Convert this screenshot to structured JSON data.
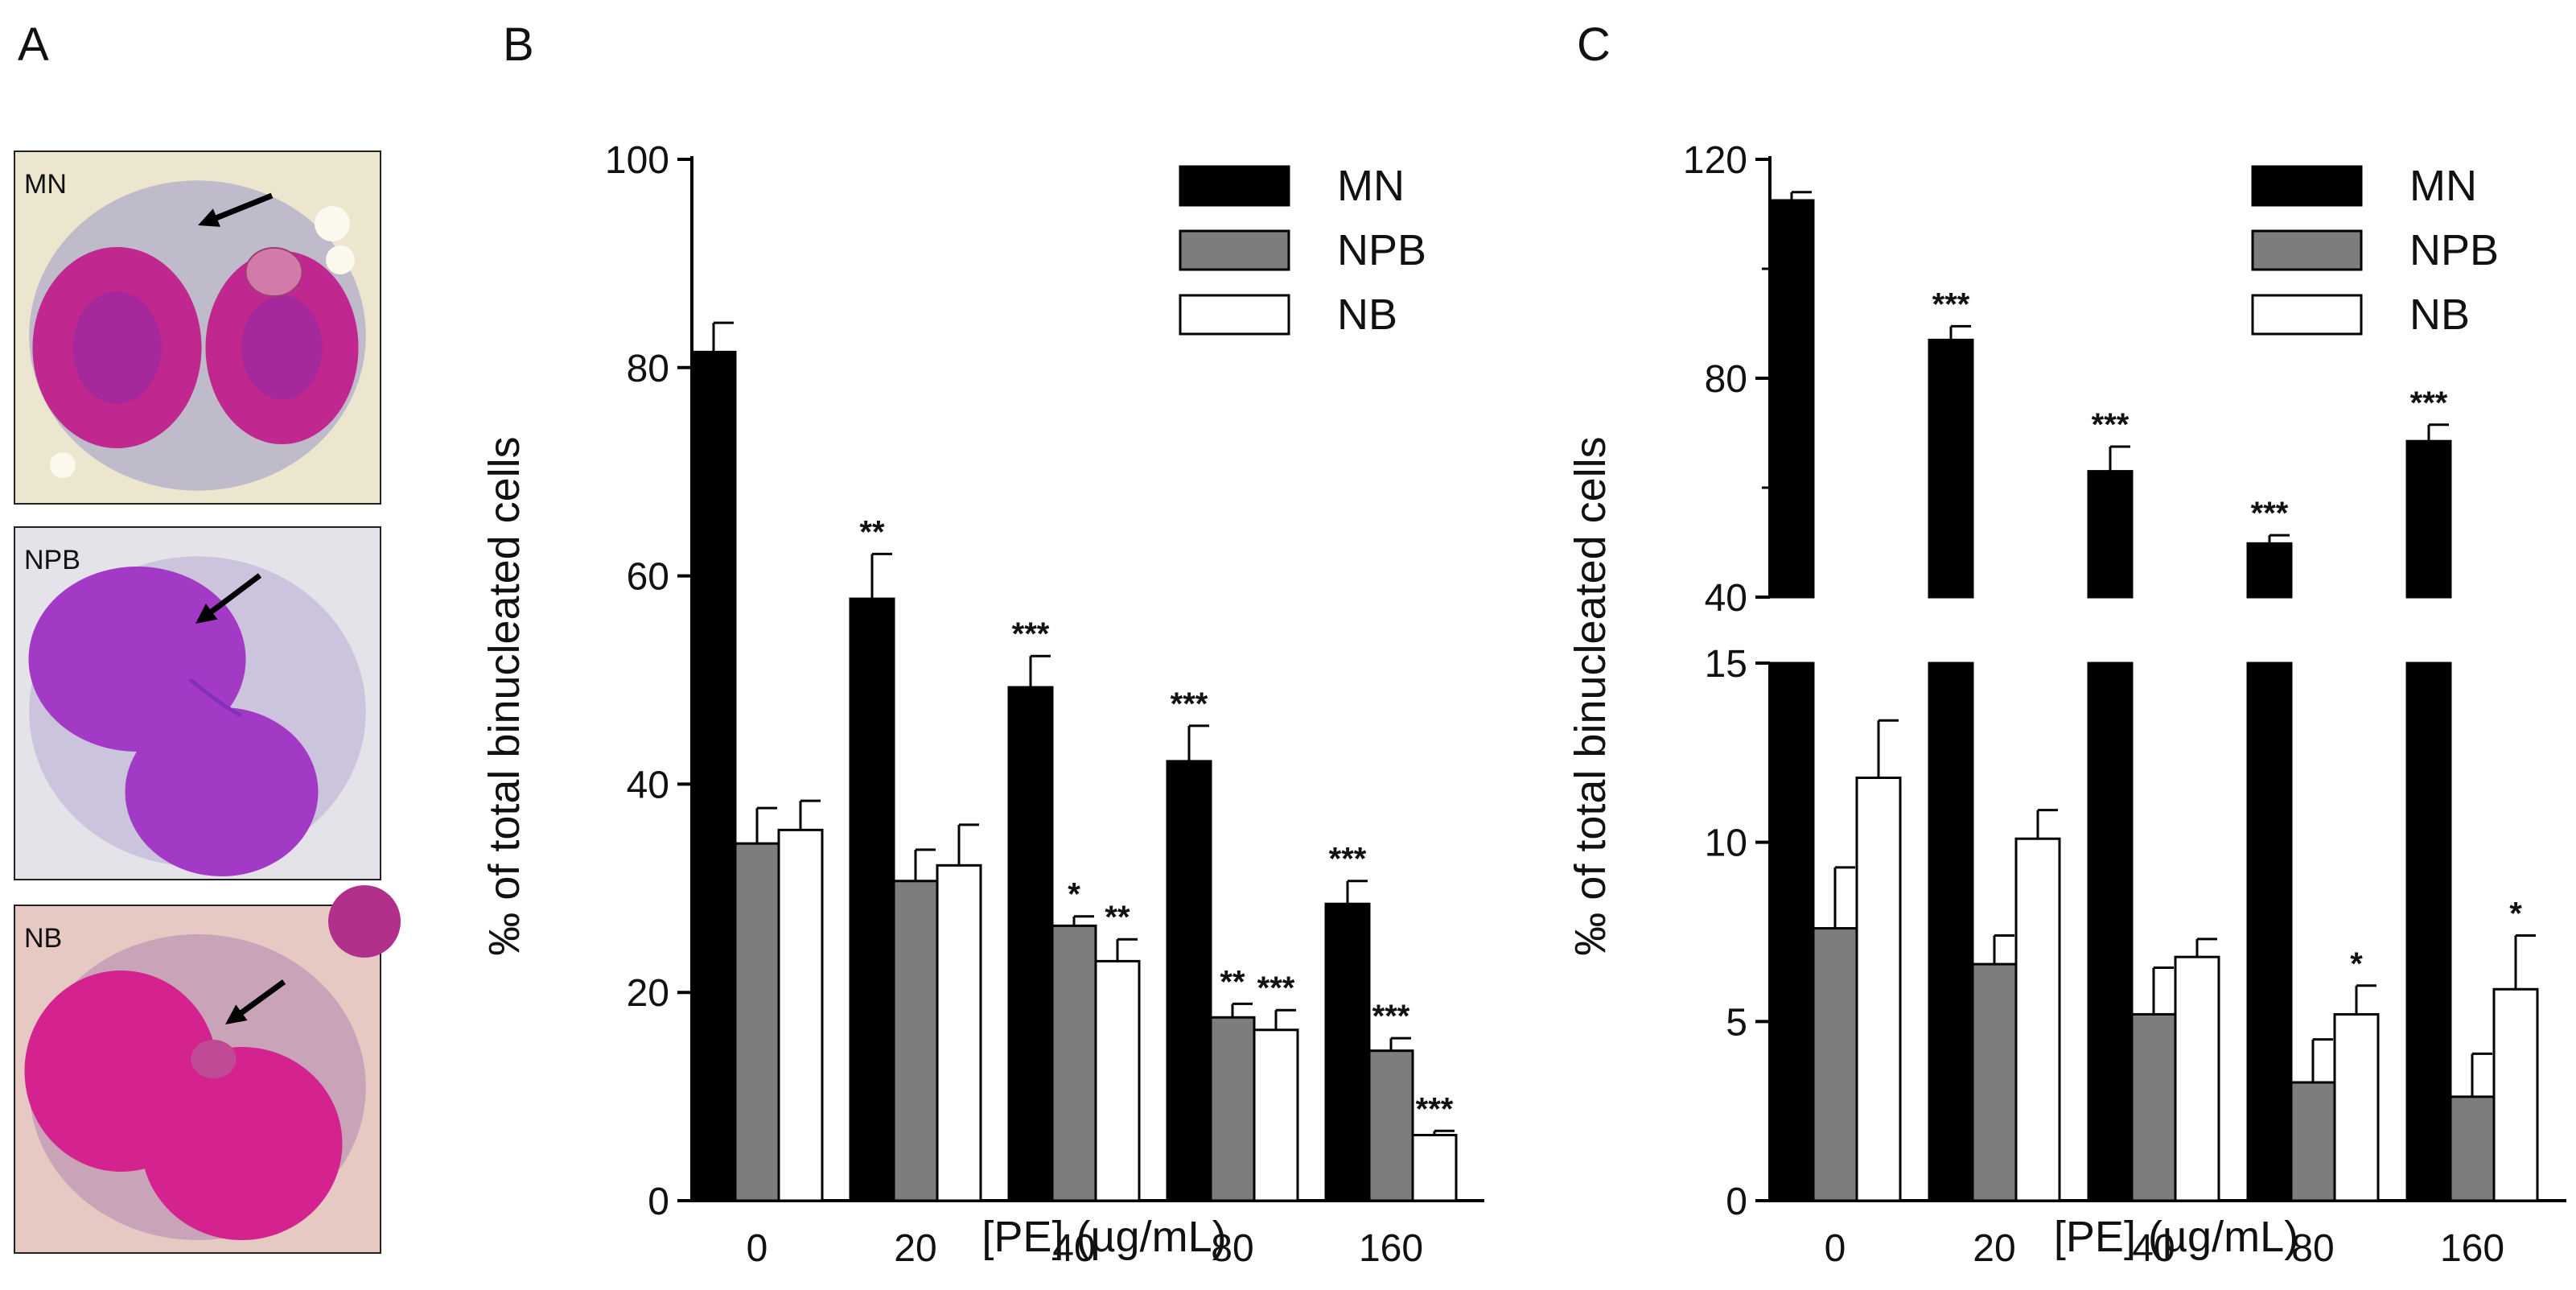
{
  "panels": {
    "a": {
      "letter": "A",
      "images": [
        {
          "label": "MN",
          "background": "#ece6cf",
          "cytoplasm": "#b7b3c9",
          "nucleus": "#c0288f",
          "nucleus_dark": "#8a2aa5"
        },
        {
          "label": "NPB",
          "background": "#e5e3ea",
          "cytoplasm": "#c8bedb",
          "nucleus": "#a33ac6",
          "nucleus_dark": "#8530bd"
        },
        {
          "label": "NB",
          "background": "#e7c9c4",
          "cytoplasm": "#c39cb6",
          "nucleus": "#d4238f",
          "nucleus_dark": "#b41d7f"
        }
      ]
    },
    "b": {
      "letter": "B"
    },
    "c": {
      "letter": "C"
    }
  },
  "colors": {
    "MN": "#000000",
    "NPB": "#7d7d7d",
    "NB": "#ffffff",
    "stroke": "#000000"
  },
  "chart_data": [
    {
      "id": "B",
      "type": "bar",
      "categories": [
        "0",
        "20",
        "40",
        "80",
        "160"
      ],
      "xlabel": "[PE]  (µg/mL)",
      "ylabel": "‰  of total binucleated cells",
      "ylim": [
        0,
        100
      ],
      "yticks": [
        "0",
        "20",
        "40",
        "60",
        "80",
        "100"
      ],
      "legend": [
        "MN",
        "NPB",
        "NB"
      ],
      "legend_position": "top-right",
      "series": [
        {
          "name": "MN",
          "values": [
            81.5,
            57.8,
            49.3,
            42.2,
            28.5
          ],
          "errors": [
            2.8,
            4.3,
            3.0,
            3.4,
            2.2
          ],
          "sig": [
            "",
            "**",
            "***",
            "***",
            "***"
          ]
        },
        {
          "name": "NPB",
          "values": [
            34.3,
            30.7,
            26.4,
            17.6,
            14.4
          ],
          "errors": [
            3.4,
            3.0,
            0.9,
            1.3,
            1.2
          ],
          "sig": [
            "",
            "",
            "*",
            "**",
            "***"
          ]
        },
        {
          "name": "NB",
          "values": [
            35.6,
            32.2,
            23.0,
            16.4,
            6.3
          ],
          "errors": [
            2.8,
            3.9,
            2.1,
            1.9,
            0.4
          ],
          "sig": [
            "",
            "",
            "**",
            "***",
            "***"
          ]
        }
      ]
    },
    {
      "id": "C",
      "type": "bar",
      "broken_axis": true,
      "categories": [
        "0",
        "20",
        "40",
        "80",
        "160"
      ],
      "xlabel": "[PE]  (µg/mL)",
      "ylabel": "‰  of total binucleated cells",
      "ylim_lower": [
        0,
        15
      ],
      "ylim_upper": [
        40,
        120
      ],
      "yticks_lower": [
        "0",
        "5",
        "10",
        "15"
      ],
      "yticks_upper": [
        "40",
        "80",
        "120"
      ],
      "legend": [
        "MN",
        "NPB",
        "NB"
      ],
      "legend_position": "top-right",
      "series": [
        {
          "name": "MN",
          "values": [
            112.5,
            87.0,
            63.0,
            49.8,
            68.5
          ],
          "errors": [
            1.5,
            2.5,
            4.5,
            1.5,
            3.0
          ],
          "sig": [
            "",
            "***",
            "***",
            "***",
            "***"
          ]
        },
        {
          "name": "NPB",
          "values": [
            7.6,
            6.6,
            5.2,
            3.3,
            2.9
          ],
          "errors": [
            1.7,
            0.8,
            1.3,
            1.2,
            1.2
          ],
          "sig": [
            "",
            "",
            "",
            "",
            ""
          ]
        },
        {
          "name": "NB",
          "values": [
            11.8,
            10.1,
            6.8,
            5.2,
            5.9
          ],
          "errors": [
            1.6,
            0.8,
            0.5,
            0.8,
            1.5
          ],
          "sig": [
            "",
            "",
            "",
            "*",
            "*"
          ]
        }
      ]
    }
  ]
}
